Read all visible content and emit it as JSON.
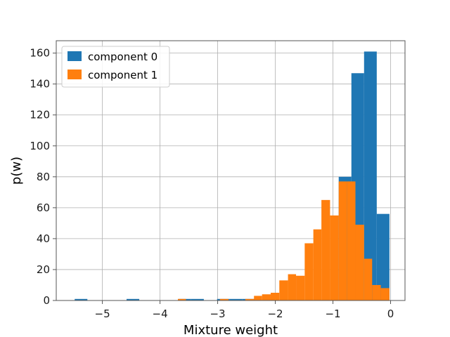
{
  "chart_data": {
    "type": "histogram",
    "xlabel": "Mixture weight",
    "ylabel": "p(w)",
    "xlim": [
      -5.8,
      0.25
    ],
    "ylim": [
      0,
      168
    ],
    "x_ticks": [
      -5,
      -4,
      -3,
      -2,
      -1,
      0
    ],
    "x_tick_labels": [
      "−5",
      "−4",
      "−3",
      "−2",
      "−1",
      "0"
    ],
    "y_ticks": [
      0,
      20,
      40,
      60,
      80,
      100,
      120,
      140,
      160
    ],
    "y_tick_labels": [
      "0",
      "20",
      "40",
      "60",
      "80",
      "100",
      "120",
      "140",
      "160"
    ],
    "grid": true,
    "legend_position": "top-left",
    "series": [
      {
        "name": "component 0",
        "color": "#1f77b4",
        "bins": [
          {
            "x0": -5.48,
            "x1": -5.26,
            "count": 1
          },
          {
            "x0": -4.58,
            "x1": -4.36,
            "count": 1
          },
          {
            "x0": -3.68,
            "x1": -3.46,
            "count": 1
          },
          {
            "x0": -3.46,
            "x1": -3.24,
            "count": 1
          },
          {
            "x0": -3.01,
            "x1": -2.79,
            "count": 1
          },
          {
            "x0": -2.79,
            "x1": -2.57,
            "count": 1
          },
          {
            "x0": -2.57,
            "x1": -2.35,
            "count": 1
          },
          {
            "x0": -0.9,
            "x1": -0.68,
            "count": 80
          },
          {
            "x0": -0.68,
            "x1": -0.46,
            "count": 147
          },
          {
            "x0": -0.46,
            "x1": -0.24,
            "count": 161
          },
          {
            "x0": -0.24,
            "x1": -0.02,
            "count": 56
          }
        ]
      },
      {
        "name": "component 1",
        "color": "#ff7f0e",
        "bins": [
          {
            "x0": -3.69,
            "x1": -3.55,
            "count": 1
          },
          {
            "x0": -2.96,
            "x1": -2.81,
            "count": 1
          },
          {
            "x0": -2.52,
            "x1": -2.37,
            "count": 1
          },
          {
            "x0": -2.37,
            "x1": -2.23,
            "count": 3
          },
          {
            "x0": -2.23,
            "x1": -2.08,
            "count": 4
          },
          {
            "x0": -2.08,
            "x1": -1.93,
            "count": 5
          },
          {
            "x0": -1.93,
            "x1": -1.78,
            "count": 13
          },
          {
            "x0": -1.78,
            "x1": -1.64,
            "count": 17
          },
          {
            "x0": -1.64,
            "x1": -1.49,
            "count": 16
          },
          {
            "x0": -1.49,
            "x1": -1.34,
            "count": 37
          },
          {
            "x0": -1.34,
            "x1": -1.2,
            "count": 46
          },
          {
            "x0": -1.2,
            "x1": -1.05,
            "count": 65
          },
          {
            "x0": -1.05,
            "x1": -0.9,
            "count": 55
          },
          {
            "x0": -0.9,
            "x1": -0.76,
            "count": 77
          },
          {
            "x0": -0.76,
            "x1": -0.61,
            "count": 77
          },
          {
            "x0": -0.61,
            "x1": -0.46,
            "count": 49
          },
          {
            "x0": -0.46,
            "x1": -0.32,
            "count": 27
          },
          {
            "x0": -0.32,
            "x1": -0.17,
            "count": 10
          },
          {
            "x0": -0.17,
            "x1": -0.02,
            "count": 8
          }
        ]
      }
    ]
  }
}
